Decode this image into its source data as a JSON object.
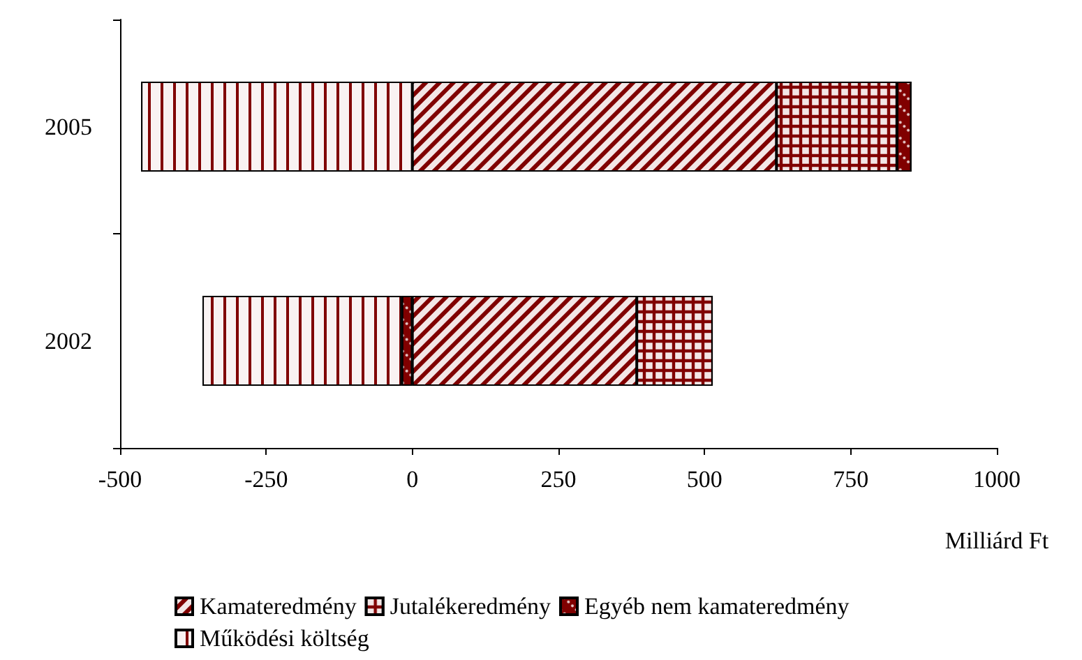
{
  "chart_data": {
    "type": "bar",
    "orientation": "horizontal",
    "stacked": true,
    "categories": [
      "2005",
      "2002"
    ],
    "series": [
      {
        "name": "Kamateredmény",
        "color": "#800000",
        "values": [
          623,
          384
        ]
      },
      {
        "name": "Jutalékeredmény",
        "color": "#800000",
        "values": [
          206,
          130
        ]
      },
      {
        "name": "Egyéb nem kamateredmény",
        "color": "#800000",
        "values": [
          25,
          -18
        ]
      },
      {
        "name": "Működési költség",
        "color": "#800000",
        "values": [
          -464,
          -341
        ]
      }
    ],
    "xlim": [
      -500,
      1000
    ],
    "xticks": [
      -500,
      -250,
      0,
      250,
      500,
      750,
      1000
    ],
    "xlabel": "Milliárd Ft",
    "grid": false,
    "legend": "bottom"
  }
}
